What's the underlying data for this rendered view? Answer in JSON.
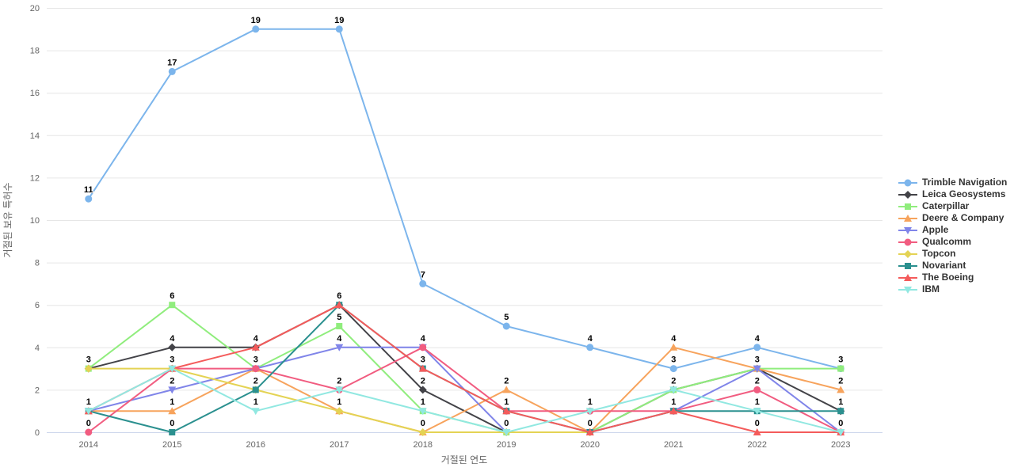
{
  "chart_data": {
    "type": "line",
    "title": "",
    "xlabel": "거절된 연도",
    "ylabel": "거절된 보유 특허수",
    "categories": [
      "2014",
      "2015",
      "2016",
      "2017",
      "2018",
      "2019",
      "2020",
      "2021",
      "2022",
      "2023"
    ],
    "ylim": [
      0,
      20
    ],
    "y_ticks": [
      0,
      2,
      4,
      6,
      8,
      10,
      12,
      14,
      16,
      18,
      20
    ],
    "grid": true,
    "legend_position": "right",
    "axis_line_color": "#ccd6eb",
    "grid_color": "#e6e6e6",
    "series": [
      {
        "name": "Trimble Navigation",
        "color": "#7cb5ec",
        "marker": "circle",
        "values": [
          11,
          17,
          19,
          19,
          7,
          5,
          4,
          3,
          4,
          3
        ]
      },
      {
        "name": "Leica Geosystems",
        "color": "#434348",
        "marker": "diamond",
        "values": [
          3,
          4,
          4,
          6,
          2,
          0,
          0,
          2,
          3,
          1
        ]
      },
      {
        "name": "Caterpillar",
        "color": "#90ed7d",
        "marker": "square",
        "values": [
          3,
          6,
          3,
          5,
          1,
          0,
          0,
          2,
          3,
          3
        ]
      },
      {
        "name": "Deere & Company",
        "color": "#f7a35c",
        "marker": "triangle",
        "values": [
          1,
          1,
          3,
          1,
          0,
          2,
          0,
          4,
          3,
          2
        ]
      },
      {
        "name": "Apple",
        "color": "#8085e9",
        "marker": "triangle-down",
        "values": [
          1,
          2,
          3,
          4,
          4,
          0,
          0,
          1,
          3,
          0
        ]
      },
      {
        "name": "Qualcomm",
        "color": "#f15c80",
        "marker": "circle",
        "values": [
          0,
          3,
          3,
          2,
          4,
          1,
          1,
          1,
          2,
          0
        ]
      },
      {
        "name": "Topcon",
        "color": "#e4d354",
        "marker": "diamond",
        "values": [
          3,
          3,
          2,
          1,
          0,
          0,
          0,
          null,
          null,
          null
        ]
      },
      {
        "name": "Novariant",
        "color": "#2b908f",
        "marker": "square",
        "values": [
          1,
          0,
          2,
          6,
          3,
          1,
          0,
          1,
          1,
          1
        ]
      },
      {
        "name": "The Boeing",
        "color": "#f45b5b",
        "marker": "triangle",
        "values": [
          1,
          3,
          4,
          6,
          3,
          1,
          0,
          1,
          0,
          0
        ]
      },
      {
        "name": "IBM",
        "color": "#91e8e1",
        "marker": "triangle-down",
        "values": [
          1,
          3,
          1,
          2,
          1,
          0,
          1,
          2,
          1,
          0
        ]
      }
    ]
  }
}
